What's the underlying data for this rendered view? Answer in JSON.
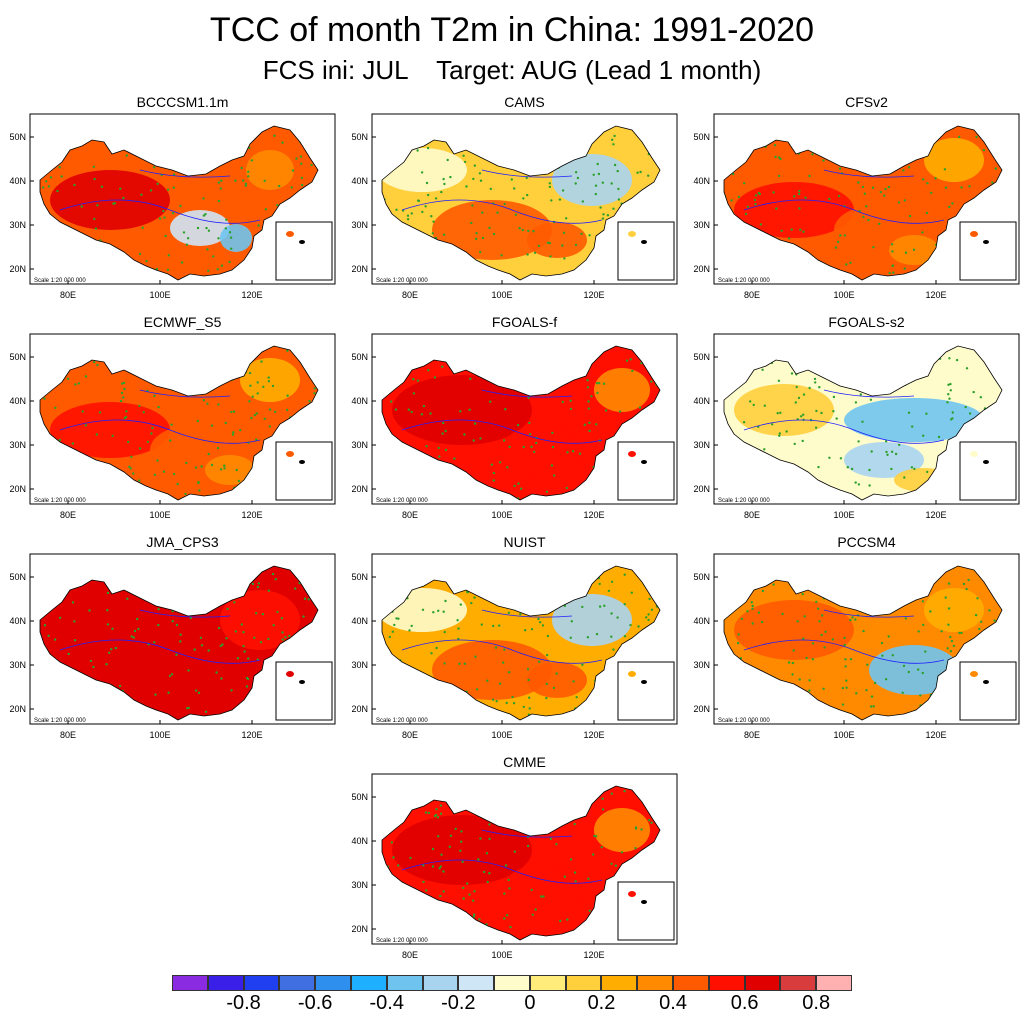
{
  "title": "TCC of month T2m in China: 1991-2020",
  "subtitle": "FCS ini: JUL    Target: AUG (Lead 1 month)",
  "axes": {
    "lat_ticks": [
      "50N",
      "40N",
      "30N",
      "20N"
    ],
    "lon_ticks": [
      "80E",
      "100E",
      "120E"
    ]
  },
  "scale_note": "Scale 1:20 000 000",
  "panels": [
    {
      "name": "BCCCSM1.1m",
      "pattern": "warm_west_cool_central",
      "level": 0.45
    },
    {
      "name": "CAMS",
      "pattern": "mixed_cool_north",
      "level": 0.2
    },
    {
      "name": "CFSv2",
      "pattern": "warm_general",
      "level": 0.45
    },
    {
      "name": "ECMWF_S5",
      "pattern": "warm_general",
      "level": 0.5
    },
    {
      "name": "FGOALS-f",
      "pattern": "warm_strong",
      "level": 0.55
    },
    {
      "name": "FGOALS-s2",
      "pattern": "cool_band",
      "level": 0.0
    },
    {
      "name": "JMA_CPS3",
      "pattern": "hot",
      "level": 0.7
    },
    {
      "name": "NUIST",
      "pattern": "mixed_cool_north",
      "level": 0.3
    },
    {
      "name": "PCCSM4",
      "pattern": "cool_south_central",
      "level": 0.35
    },
    {
      "name": "CMME",
      "pattern": "warm_strong",
      "level": 0.6
    }
  ],
  "colorbar": {
    "colors": [
      "#8a2be2",
      "#3a1fe8",
      "#1f3ff0",
      "#3f6fe0",
      "#2f8fef",
      "#1fafff",
      "#6fc4ef",
      "#a8d4ef",
      "#cfe6f6",
      "#fffccc",
      "#ffec7a",
      "#ffcf3c",
      "#ffad00",
      "#ff8a00",
      "#ff5a00",
      "#ff0f00",
      "#e00000",
      "#d83c3c",
      "#ffb0b0"
    ],
    "labels": [
      "-0.8",
      "-0.6",
      "-0.4",
      "-0.2",
      "0",
      "0.2",
      "0.4",
      "0.6",
      "0.8"
    ]
  }
}
